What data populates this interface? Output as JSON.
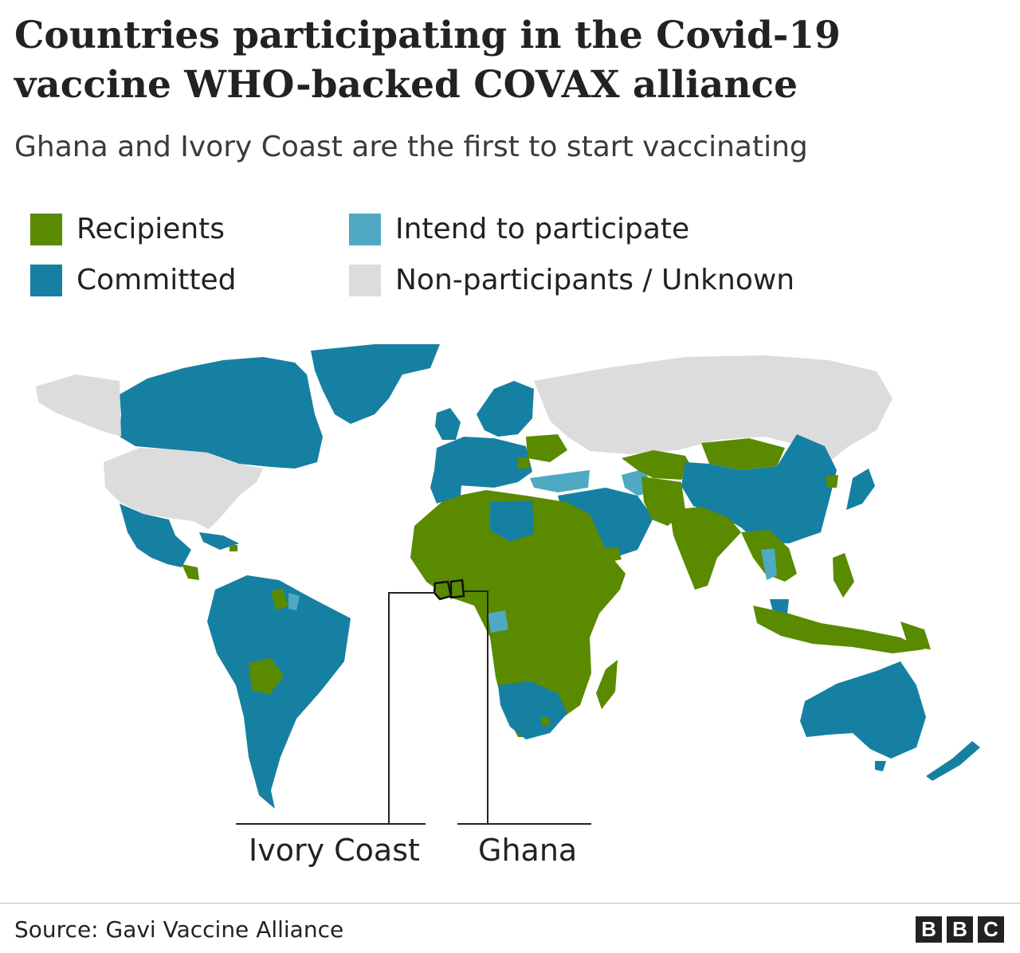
{
  "header": {
    "title": "Countries participating in the Covid-19 vaccine WHO-backed COVAX alliance",
    "subtitle": "Ghana and Ivory Coast are the first to start vaccinating"
  },
  "legend": [
    {
      "label": "Recipients",
      "color": "#5a8a00"
    },
    {
      "label": "Intend to participate",
      "color": "#4fa9c2"
    },
    {
      "label": "Committed",
      "color": "#1680a2"
    },
    {
      "label": "Non-participants / Unknown",
      "color": "#dcdcdc"
    }
  ],
  "map": {
    "highlighted": [
      {
        "country": "Ivory Coast",
        "status": "Recipients"
      },
      {
        "country": "Ghana",
        "status": "Recipients"
      }
    ],
    "callouts": {
      "ivory_coast": "Ivory Coast",
      "ghana": "Ghana"
    }
  },
  "footer": {
    "source": "Source: Gavi Vaccine Alliance",
    "logo_letters": [
      "B",
      "B",
      "C"
    ]
  }
}
